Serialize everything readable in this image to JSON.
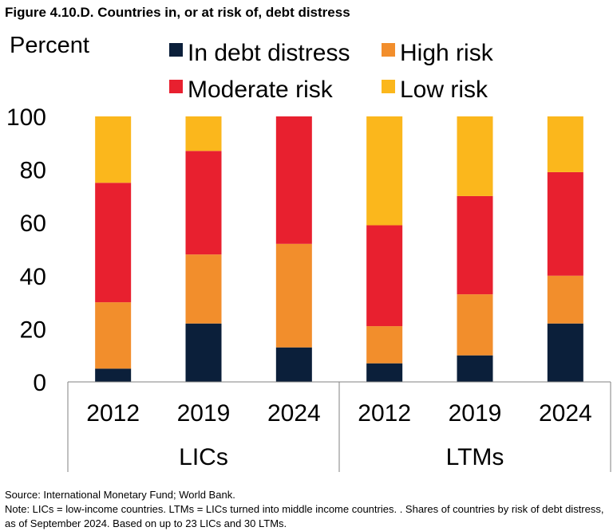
{
  "title": "Figure 4.10.D. Countries in, or at risk of, debt distress",
  "source": "Source: International Monetary Fund; World Bank.",
  "note": "Note: LICs = low-income countries.  LTMs = LICs turned into middle income countries. . Shares of countries by risk of debt distress, as of September 2024. Based on up to 23 LICs and 30 LTMs.",
  "chart_data": {
    "type": "bar",
    "stacked": true,
    "ylabel": "Percent",
    "ylim": [
      0,
      100
    ],
    "yticks": [
      0,
      20,
      40,
      60,
      80,
      100
    ],
    "categories": [
      "2012",
      "2019",
      "2024",
      "2012",
      "2019",
      "2024"
    ],
    "groups": [
      {
        "label": "LICs",
        "categories": [
          "2012",
          "2019",
          "2024"
        ]
      },
      {
        "label": "LTMs",
        "categories": [
          "2012",
          "2019",
          "2024"
        ]
      }
    ],
    "legend_position": "top",
    "series": [
      {
        "name": "In debt distress",
        "color": "#0b1f3a",
        "values": [
          5,
          22,
          13,
          7,
          10,
          22
        ]
      },
      {
        "name": "High risk",
        "color": "#f28e2c",
        "values": [
          25,
          26,
          39,
          14,
          23,
          18
        ]
      },
      {
        "name": "Moderate risk",
        "color": "#e8202f",
        "values": [
          45,
          39,
          48,
          38,
          37,
          39
        ]
      },
      {
        "name": "Low risk",
        "color": "#fbb71c",
        "values": [
          25,
          13,
          0,
          41,
          30,
          21
        ]
      }
    ]
  }
}
